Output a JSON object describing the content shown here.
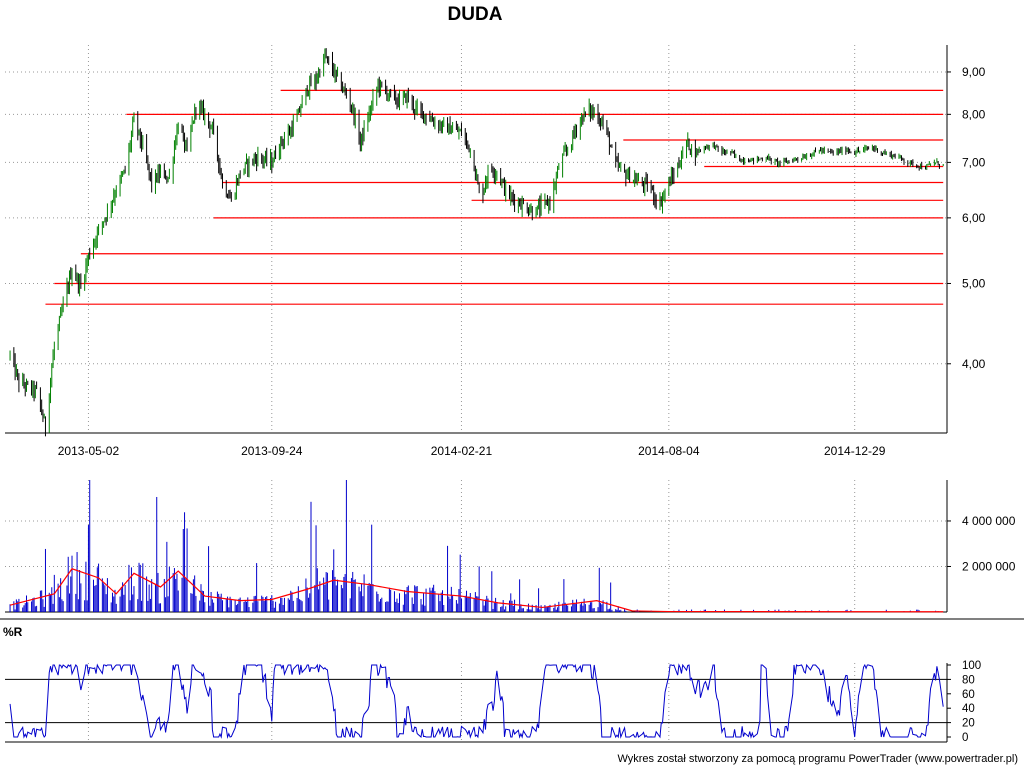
{
  "chart_data": [
    {
      "type": "candlestick",
      "title": "DUDA",
      "yscale": "log",
      "ylim": [
        3.3,
        9.7
      ],
      "y_ticks": [
        "4,00",
        "5,00",
        "6,00",
        "7,00",
        "8,00",
        "9,00"
      ],
      "x_ticks": [
        "2013-05-02",
        "2013-09-24",
        "2014-02-21",
        "2014-08-04",
        "2014-12-29"
      ],
      "grid": true,
      "colors": {
        "up": "#008000",
        "down": "#000000",
        "support_resistance": "#ff0000"
      },
      "price_path": [
        [
          "2013-03-01",
          4.1
        ],
        [
          "2013-03-08",
          3.8
        ],
        [
          "2013-03-15",
          3.75
        ],
        [
          "2013-03-22",
          3.7
        ],
        [
          "2013-03-29",
          3.35
        ],
        [
          "2013-04-05",
          4.2
        ],
        [
          "2013-04-12",
          4.7
        ],
        [
          "2013-04-19",
          5.2
        ],
        [
          "2013-04-26",
          4.95
        ],
        [
          "2013-05-02",
          5.4
        ],
        [
          "2013-05-10",
          5.8
        ],
        [
          "2013-05-17",
          6.1
        ],
        [
          "2013-05-24",
          6.5
        ],
        [
          "2013-06-01",
          6.9
        ],
        [
          "2013-06-07",
          7.9
        ],
        [
          "2013-06-14",
          7.3
        ],
        [
          "2013-06-21",
          6.6
        ],
        [
          "2013-06-28",
          6.8
        ],
        [
          "2013-07-05",
          6.7
        ],
        [
          "2013-07-12",
          7.8
        ],
        [
          "2013-07-19",
          7.2
        ],
        [
          "2013-07-26",
          8.2
        ],
        [
          "2013-08-02",
          8.0
        ],
        [
          "2013-08-09",
          7.6
        ],
        [
          "2013-08-16",
          6.6
        ],
        [
          "2013-08-23",
          6.3
        ],
        [
          "2013-08-30",
          6.8
        ],
        [
          "2013-09-06",
          7.0
        ],
        [
          "2013-09-13",
          7.1
        ],
        [
          "2013-09-24",
          7.0
        ],
        [
          "2013-10-01",
          7.4
        ],
        [
          "2013-10-08",
          7.6
        ],
        [
          "2013-10-15",
          8.0
        ],
        [
          "2013-10-22",
          8.6
        ],
        [
          "2013-10-29",
          8.8
        ],
        [
          "2013-11-05",
          9.4
        ],
        [
          "2013-11-12",
          9.0
        ],
        [
          "2013-11-19",
          8.6
        ],
        [
          "2013-11-26",
          8.2
        ],
        [
          "2013-12-03",
          7.4
        ],
        [
          "2013-12-10",
          8.0
        ],
        [
          "2013-12-17",
          8.7
        ],
        [
          "2013-12-24",
          8.5
        ],
        [
          "2014-01-02",
          8.3
        ],
        [
          "2014-01-09",
          8.4
        ],
        [
          "2014-01-16",
          8.1
        ],
        [
          "2014-01-23",
          8.0
        ],
        [
          "2014-02-01",
          7.8
        ],
        [
          "2014-02-10",
          7.7
        ],
        [
          "2014-02-21",
          7.6
        ],
        [
          "2014-03-01",
          7.2
        ],
        [
          "2014-03-08",
          6.3
        ],
        [
          "2014-03-15",
          6.9
        ],
        [
          "2014-03-22",
          6.8
        ],
        [
          "2014-03-29",
          6.4
        ],
        [
          "2014-04-05",
          6.3
        ],
        [
          "2014-04-12",
          6.2
        ],
        [
          "2014-04-19",
          6.1
        ],
        [
          "2014-04-26",
          6.2
        ],
        [
          "2014-05-03",
          6.3
        ],
        [
          "2014-05-10",
          7.0
        ],
        [
          "2014-05-17",
          7.3
        ],
        [
          "2014-05-24",
          7.8
        ],
        [
          "2014-06-01",
          8.1
        ],
        [
          "2014-06-08",
          8.0
        ],
        [
          "2014-06-15",
          7.7
        ],
        [
          "2014-06-22",
          7.0
        ],
        [
          "2014-06-29",
          6.8
        ],
        [
          "2014-07-06",
          6.7
        ],
        [
          "2014-07-13",
          6.6
        ],
        [
          "2014-07-20",
          6.55
        ],
        [
          "2014-07-27",
          6.2
        ],
        [
          "2014-08-04",
          6.6
        ],
        [
          "2014-08-11",
          6.9
        ],
        [
          "2014-08-18",
          7.4
        ],
        [
          "2014-08-25",
          7.2
        ],
        [
          "2014-09-01",
          7.3
        ],
        [
          "2014-09-08",
          7.35
        ],
        [
          "2014-09-15",
          7.2
        ],
        [
          "2014-09-22",
          7.2
        ],
        [
          "2014-09-29",
          7.05
        ],
        [
          "2014-10-06",
          7.05
        ],
        [
          "2014-10-13",
          7.05
        ],
        [
          "2014-10-20",
          7.1
        ],
        [
          "2014-10-27",
          7.0
        ],
        [
          "2014-11-03",
          7.0
        ],
        [
          "2014-11-10",
          7.05
        ],
        [
          "2014-11-17",
          7.1
        ],
        [
          "2014-11-24",
          7.15
        ],
        [
          "2014-12-01",
          7.25
        ],
        [
          "2014-12-08",
          7.2
        ],
        [
          "2014-12-15",
          7.2
        ],
        [
          "2014-12-22",
          7.25
        ],
        [
          "2014-12-29",
          7.2
        ],
        [
          "2015-01-05",
          7.25
        ],
        [
          "2015-01-12",
          7.3
        ],
        [
          "2015-01-19",
          7.2
        ],
        [
          "2015-01-26",
          7.15
        ],
        [
          "2015-02-02",
          7.1
        ],
        [
          "2015-02-09",
          7.0
        ],
        [
          "2015-02-16",
          6.95
        ],
        [
          "2015-02-23",
          6.9
        ],
        [
          "2015-03-02",
          7.0
        ],
        [
          "2015-03-09",
          6.95
        ]
      ],
      "horizontal_levels": [
        {
          "y": 8.55,
          "from": "2013-10-01",
          "to": "2015-03-09"
        },
        {
          "y": 8.0,
          "from": "2013-06-01",
          "to": "2015-03-09"
        },
        {
          "y": 7.45,
          "from": "2014-06-29",
          "to": "2015-03-09"
        },
        {
          "y": 6.92,
          "from": "2014-09-01",
          "to": "2015-03-09"
        },
        {
          "y": 6.62,
          "from": "2013-08-16",
          "to": "2015-03-09"
        },
        {
          "y": 6.3,
          "from": "2014-03-01",
          "to": "2015-03-09"
        },
        {
          "y": 6.0,
          "from": "2013-08-09",
          "to": "2015-03-09"
        },
        {
          "y": 5.43,
          "from": "2013-04-26",
          "to": "2015-03-09"
        },
        {
          "y": 5.0,
          "from": "2013-04-05",
          "to": "2015-03-09"
        },
        {
          "y": 4.72,
          "from": "2013-03-29",
          "to": "2015-03-09"
        }
      ]
    },
    {
      "type": "bar",
      "name": "volume",
      "y_ticks": [
        "2 000 000",
        "4 000 000"
      ],
      "ylim": [
        0,
        5800000
      ],
      "colors": {
        "bars": "#0000cc",
        "moving_average": "#ff0000"
      },
      "moving_average": [
        [
          "2013-03-01",
          300000
        ],
        [
          "2013-04-05",
          800000
        ],
        [
          "2013-04-19",
          1900000
        ],
        [
          "2013-05-10",
          1500000
        ],
        [
          "2013-05-24",
          800000
        ],
        [
          "2013-06-07",
          1700000
        ],
        [
          "2013-06-28",
          1100000
        ],
        [
          "2013-07-12",
          1800000
        ],
        [
          "2013-08-02",
          700000
        ],
        [
          "2013-08-30",
          500000
        ],
        [
          "2013-09-24",
          550000
        ],
        [
          "2013-10-22",
          1000000
        ],
        [
          "2013-11-12",
          1400000
        ],
        [
          "2013-12-10",
          1200000
        ],
        [
          "2014-01-09",
          900000
        ],
        [
          "2014-02-21",
          700000
        ],
        [
          "2014-03-22",
          400000
        ],
        [
          "2014-04-26",
          200000
        ],
        [
          "2014-06-08",
          500000
        ],
        [
          "2014-07-06",
          50000
        ],
        [
          "2014-08-04",
          20000
        ],
        [
          "2015-03-09",
          10000
        ]
      ]
    },
    {
      "type": "line",
      "name": "%R",
      "label": "%R",
      "y_ticks": [
        "0",
        "20",
        "40",
        "60",
        "80",
        "100"
      ],
      "ylim": [
        0,
        100
      ],
      "reference_lines": [
        20,
        80
      ],
      "colors": {
        "line": "#0000cc"
      }
    }
  ],
  "footer": {
    "text": "Wykres został stworzony za pomocą programu PowerTrader (www.powertrader.pl)"
  }
}
